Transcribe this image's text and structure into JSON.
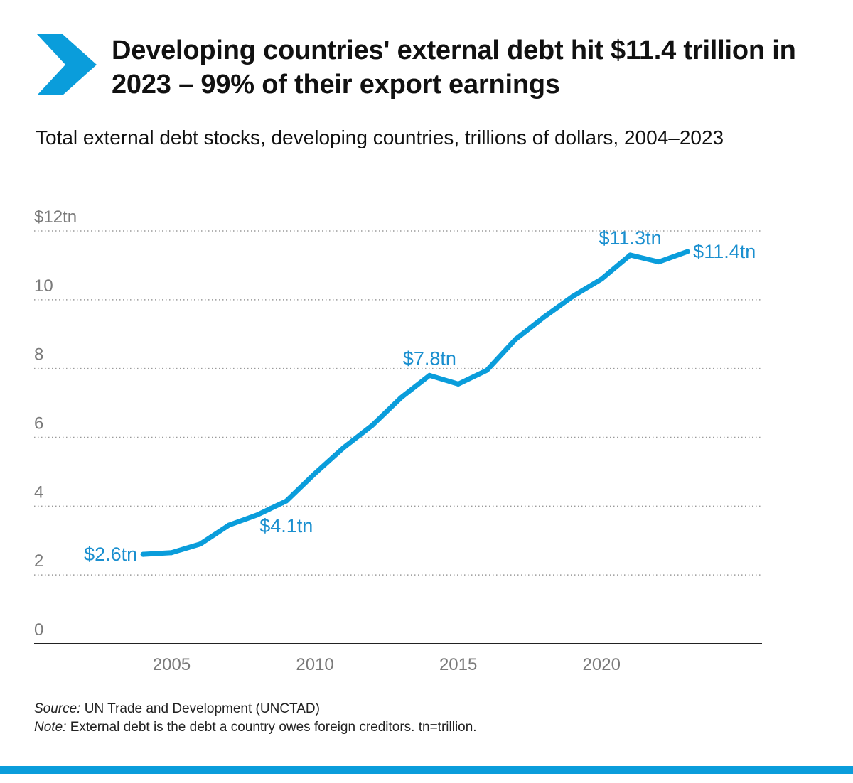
{
  "header": {
    "title": "Developing countries' external debt hit $11.4 trillion in 2023 – 99% of their export earnings",
    "subtitle": "Total external debt stocks, developing countries, trillions of dollars, 2004–2023"
  },
  "footer": {
    "source_label": "Source:",
    "source_text": "UN Trade and Development (UNCTAD)",
    "note_label": "Note:",
    "note_text": "External debt is the debt a country owes foreign creditors. tn=trillion."
  },
  "colors": {
    "accent": "#0a9ddb",
    "line": "#0a9ddb",
    "label": "#1a8fcf",
    "tick": "#7a7a7a",
    "grid": "#9a9a9a",
    "axis": "#222222"
  },
  "icon": "chevron-right-icon",
  "chart_data": {
    "type": "line",
    "x": [
      2004,
      2005,
      2006,
      2007,
      2008,
      2009,
      2010,
      2011,
      2012,
      2013,
      2014,
      2015,
      2016,
      2017,
      2018,
      2019,
      2020,
      2021,
      2022,
      2023
    ],
    "series": [
      {
        "values": [
          2.6,
          2.65,
          2.9,
          3.45,
          3.75,
          4.15,
          4.95,
          5.7,
          6.35,
          7.15,
          7.8,
          7.55,
          7.95,
          8.85,
          9.5,
          10.1,
          10.6,
          11.3,
          11.1,
          11.4
        ]
      }
    ],
    "ylim": [
      0,
      12
    ],
    "xlim": [
      2000.2,
      2025.6
    ],
    "yticks": [
      0,
      2,
      4,
      6,
      8,
      10,
      12
    ],
    "ytick_labels": [
      "0",
      "2",
      "4",
      "6",
      "8",
      "10",
      "$12tn"
    ],
    "xticks": [
      2005,
      2010,
      2015,
      2020
    ],
    "xtick_labels": [
      "2005",
      "2010",
      "2015",
      "2020"
    ],
    "grid": true,
    "annotations": [
      {
        "x": 2004,
        "y": 2.6,
        "text": "$2.6tn",
        "pos": "left"
      },
      {
        "x": 2009,
        "y": 4.15,
        "text": "$4.1tn",
        "pos": "below"
      },
      {
        "x": 2014,
        "y": 7.8,
        "text": "$7.8tn",
        "pos": "above"
      },
      {
        "x": 2021,
        "y": 11.3,
        "text": "$11.3tn",
        "pos": "above"
      },
      {
        "x": 2023,
        "y": 11.4,
        "text": "$11.4tn",
        "pos": "right"
      }
    ]
  }
}
